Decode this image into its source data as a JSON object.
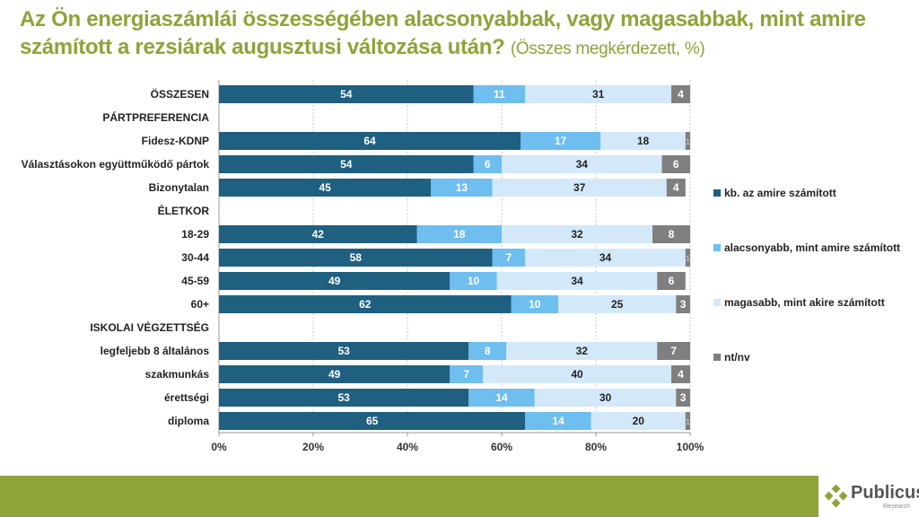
{
  "title": {
    "main": "Az Ön energiaszámlái összességében alacsonyabbak, vagy magasabbak, mint amire számított a rezsiárak augusztusi változása után?",
    "sub": "(Összes megkérdezett, %)"
  },
  "logo": {
    "name": "Publicus",
    "sub": "Research"
  },
  "chart_data": {
    "type": "bar",
    "orientation": "horizontal",
    "stacked": true,
    "categories": [
      "ÖSSZESEN",
      "PÁRTPREFERENCIA",
      "Fidesz-KDNP",
      "Választásokon együttműködő pártok",
      "Bizonytalan",
      "ÉLETKOR",
      "18-29",
      "30-44",
      "45-59",
      "60+",
      "ISKOLAI VÉGZETTSÉG",
      "legfeljebb 8 általános",
      "szakmunkás",
      "érettségi",
      "diploma"
    ],
    "series": [
      {
        "name": "kb. az amire számított",
        "color": "#1f5f80",
        "values": [
          54,
          null,
          64,
          54,
          45,
          null,
          42,
          58,
          49,
          62,
          null,
          53,
          49,
          53,
          65
        ]
      },
      {
        "name": "alacsonyabb, mint amire számított",
        "color": "#6ebef0",
        "values": [
          11,
          null,
          17,
          6,
          13,
          null,
          18,
          7,
          10,
          10,
          null,
          8,
          7,
          14,
          14
        ]
      },
      {
        "name": "magasabb, mint akire számított",
        "color": "#d3e9fa",
        "values": [
          31,
          null,
          18,
          34,
          37,
          null,
          32,
          34,
          34,
          25,
          null,
          32,
          40,
          30,
          20
        ]
      },
      {
        "name": "nt/nv",
        "color": "#7f7f7f",
        "values": [
          4,
          null,
          1,
          6,
          4,
          null,
          8,
          1,
          6,
          3,
          null,
          7,
          4,
          3,
          1
        ]
      }
    ],
    "xlim": [
      0,
      100
    ],
    "xticks": [
      "0%",
      "20%",
      "40%",
      "60%",
      "80%",
      "100%"
    ],
    "grid": true,
    "legend": "right"
  }
}
